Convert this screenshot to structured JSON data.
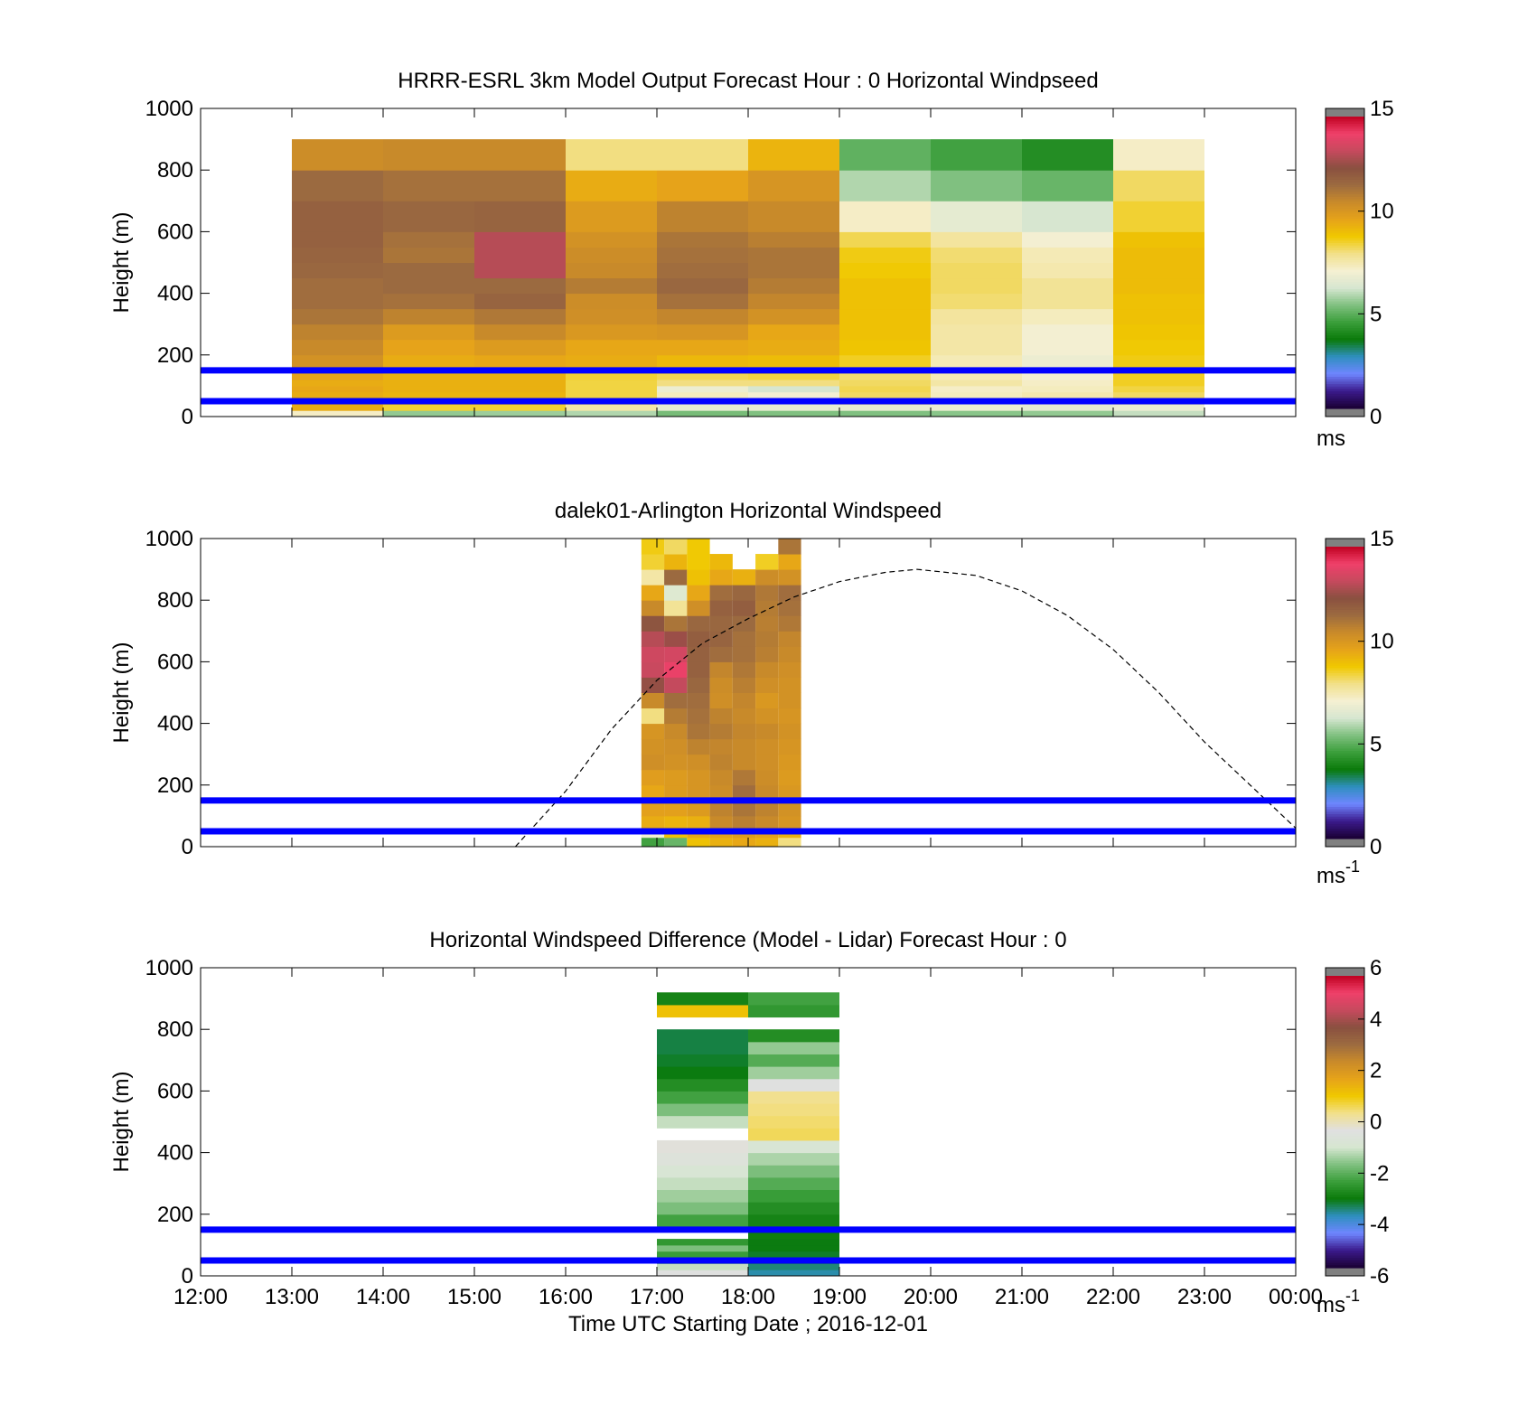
{
  "colors": {
    "line_band": "#0000ff",
    "curve": "#000000",
    "windspeed_scale": [
      "#808080",
      "#1a0033",
      "#3b1a8c",
      "#6f86ff",
      "#2f8fc0",
      "#0a7a0a",
      "#3a9e3a",
      "#7fc07f",
      "#d6e6d0",
      "#f5f0d2",
      "#f2e08a",
      "#f0c800",
      "#e6a31a",
      "#c98a2a",
      "#9c6b40",
      "#8a5040",
      "#c64a5e",
      "#f0406a",
      "#c00020",
      "#808080"
    ],
    "difference_scale": [
      "#808080",
      "#1a0033",
      "#3b1a8c",
      "#6f86ff",
      "#2f8fc0",
      "#0a7a0a",
      "#3a9e3a",
      "#7fc07f",
      "#d6e6d0",
      "#e0e0e0",
      "#f2e08a",
      "#f0c800",
      "#e6a31a",
      "#c98a2a",
      "#9c6b40",
      "#8a5040",
      "#c64a5e",
      "#f0406a",
      "#c00020",
      "#808080"
    ]
  },
  "chart_data": [
    {
      "type": "heatmap",
      "title": "HRRR-ESRL 3km Model Output   Forecast Hour : 0 Horizontal Windpseed",
      "ylabel": "Height (m)",
      "xlabel": "",
      "xlim": [
        12,
        24
      ],
      "ylim": [
        0,
        1000
      ],
      "yticks": [
        "1000",
        "800",
        "600",
        "400",
        "200",
        "0"
      ],
      "colorbar": {
        "ticks": [
          "15",
          "10",
          "5",
          "0"
        ],
        "range": [
          0,
          15
        ],
        "unit": "ms",
        "unit_sup": ""
      },
      "horizontal_lines_m": [
        50,
        150
      ],
      "columns_x": [
        13,
        14,
        15,
        16,
        17,
        18,
        19,
        20,
        21,
        22,
        23
      ],
      "column_width_h": 1,
      "height_bins_m": [
        0,
        20,
        40,
        60,
        80,
        100,
        120,
        140,
        160,
        200,
        250,
        300,
        350,
        400,
        450,
        500,
        550,
        600,
        700,
        800,
        900,
        1000
      ],
      "values": [
        [
          7.2,
          9.5,
          9.5,
          9.5,
          9.6,
          9.5,
          9.7,
          9.8,
          10.3,
          10.6,
          10.8,
          11.2,
          11.4,
          11.4,
          11.6,
          11.7,
          11.8,
          11.8,
          11.5,
          10.5
        ],
        [
          5.5,
          8.5,
          9.0,
          9.3,
          9.4,
          9.4,
          9.4,
          9.4,
          9.5,
          9.7,
          10.0,
          10.8,
          11.3,
          11.5,
          11.5,
          11.2,
          11.3,
          11.6,
          11.3,
          10.6
        ],
        [
          5.6,
          8.5,
          9.0,
          9.3,
          9.4,
          9.4,
          9.4,
          9.4,
          9.6,
          10.0,
          10.6,
          11.1,
          11.7,
          11.5,
          13.0,
          13.0,
          13.0,
          11.7,
          11.3,
          10.6
        ],
        [
          5.8,
          7.6,
          8.2,
          8.4,
          8.4,
          8.4,
          8.5,
          8.6,
          9.5,
          9.6,
          10.1,
          10.4,
          10.5,
          11.0,
          10.6,
          10.5,
          10.3,
          10.0,
          9.5,
          8.0
        ],
        [
          5.2,
          6.6,
          7.2,
          7.3,
          6.8,
          8.0,
          8.3,
          8.6,
          9.2,
          9.6,
          10.2,
          10.7,
          11.3,
          11.6,
          11.4,
          11.3,
          11.2,
          10.8,
          9.7,
          8.0
        ],
        [
          5.3,
          6.7,
          6.4,
          7.0,
          6.2,
          8.0,
          8.4,
          8.8,
          9.1,
          9.5,
          9.6,
          10.3,
          10.7,
          11.0,
          11.2,
          11.2,
          10.9,
          10.6,
          10.2,
          9.3
        ],
        [
          5.3,
          6.7,
          8.0,
          8.2,
          8.3,
          8.2,
          8.1,
          8.2,
          8.6,
          8.9,
          9.0,
          9.0,
          9.0,
          9.0,
          8.8,
          8.7,
          8.3,
          7.2,
          5.8,
          4.9
        ],
        [
          5.4,
          6.8,
          6.5,
          7.3,
          7.2,
          7.6,
          7.4,
          7.6,
          7.4,
          7.6,
          7.6,
          7.7,
          8.1,
          8.2,
          8.2,
          8.1,
          7.7,
          6.6,
          5.3,
          4.5
        ],
        [
          5.5,
          6.6,
          7.0,
          7.5,
          7.3,
          7.2,
          7.0,
          7.0,
          6.8,
          7.0,
          7.0,
          7.3,
          7.8,
          7.8,
          7.5,
          7.4,
          7.0,
          6.2,
          5.0,
          4.0
        ],
        [
          6.0,
          6.8,
          7.6,
          8.2,
          8.4,
          8.6,
          8.6,
          8.7,
          8.7,
          8.8,
          8.9,
          9.0,
          9.0,
          9.1,
          9.1,
          9.1,
          9.0,
          8.5,
          8.2,
          7.2
        ],
        [
          null,
          null,
          null,
          null,
          null,
          null,
          null,
          null,
          null,
          null,
          null,
          null,
          null,
          null,
          null,
          null,
          null,
          null,
          null,
          null
        ],
        [
          null,
          null,
          null,
          null,
          null,
          null,
          null,
          null,
          null,
          null,
          null,
          null,
          null,
          null,
          null,
          null,
          null,
          null,
          null,
          null
        ]
      ]
    },
    {
      "type": "heatmap",
      "title": "dalek01-Arlington  Horizontal Windspeed",
      "ylabel": "Height (m)",
      "xlabel": "",
      "xlim": [
        12,
        24
      ],
      "ylim": [
        0,
        1000
      ],
      "yticks": [
        "1000",
        "800",
        "600",
        "400",
        "200",
        "0"
      ],
      "colorbar": {
        "ticks": [
          "15",
          "10",
          "5",
          "0"
        ],
        "range": [
          0,
          15
        ],
        "unit": "ms",
        "unit_sup": "-1"
      },
      "horizontal_lines_m": [
        50,
        150
      ],
      "columns_x_start": [
        16.83,
        17.08,
        17.33,
        17.58,
        17.83,
        18.08,
        18.33
      ],
      "column_width_h": 0.25,
      "height_bins_m": [
        0,
        30,
        60,
        100,
        150,
        200,
        250,
        300,
        350,
        400,
        450,
        500,
        550,
        600,
        650,
        700,
        750,
        800,
        850,
        900,
        950,
        1000
      ],
      "values": [
        [
          4.5,
          7.0,
          9.5,
          9.8,
          9.6,
          9.9,
          10.4,
          10.3,
          10.2,
          8.0,
          10.6,
          12.5,
          13.3,
          13.4,
          13.0,
          12.2,
          10.6,
          9.6,
          7.6,
          8.5,
          8.7
        ],
        [
          5.0,
          9.0,
          9.3,
          9.8,
          10.0,
          10.0,
          10.3,
          10.4,
          10.6,
          11.0,
          11.4,
          13.2,
          14.0,
          13.5,
          12.6,
          11.2,
          7.8,
          6.4,
          11.5,
          9.3,
          8.2
        ],
        [
          9.0,
          9.6,
          9.4,
          10.0,
          10.2,
          10.2,
          10.4,
          10.8,
          11.2,
          11.3,
          11.4,
          11.6,
          11.8,
          11.8,
          11.9,
          11.6,
          10.4,
          9.6,
          9.0,
          8.8,
          8.8
        ],
        [
          9.4,
          9.8,
          10.6,
          10.8,
          10.5,
          10.6,
          10.8,
          10.7,
          11.0,
          10.8,
          10.4,
          10.5,
          10.7,
          11.4,
          11.7,
          11.6,
          11.8,
          11.4,
          9.6,
          9.2,
          null
        ],
        [
          9.6,
          10.0,
          10.9,
          11.2,
          11.4,
          11.1,
          10.6,
          10.6,
          10.7,
          10.6,
          10.7,
          10.9,
          11.1,
          11.3,
          11.3,
          11.5,
          11.9,
          11.6,
          9.4,
          null,
          null
        ],
        [
          9.4,
          9.8,
          10.6,
          10.8,
          10.6,
          10.5,
          10.4,
          10.4,
          10.6,
          10.3,
          10.1,
          10.4,
          10.6,
          10.9,
          11.0,
          10.9,
          11.0,
          11.1,
          10.5,
          8.6,
          null
        ],
        [
          8.0,
          9.4,
          10.2,
          10.3,
          10.1,
          10.0,
          10.1,
          10.2,
          10.3,
          10.2,
          10.3,
          10.3,
          10.4,
          10.6,
          10.7,
          11.1,
          11.3,
          11.4,
          10.3,
          9.6,
          11.2
        ]
      ],
      "curve": {
        "style": "dashed",
        "points": [
          [
            15.45,
            0
          ],
          [
            16,
            180
          ],
          [
            16.5,
            380
          ],
          [
            17,
            540
          ],
          [
            17.5,
            660
          ],
          [
            18,
            740
          ],
          [
            18.5,
            810
          ],
          [
            19,
            860
          ],
          [
            19.5,
            890
          ],
          [
            19.85,
            900
          ],
          [
            20.5,
            880
          ],
          [
            21,
            830
          ],
          [
            21.5,
            750
          ],
          [
            22,
            640
          ],
          [
            22.5,
            500
          ],
          [
            23,
            340
          ],
          [
            23.5,
            200
          ],
          [
            24,
            60
          ]
        ]
      }
    },
    {
      "type": "heatmap",
      "title": "Horizontal Windspeed Difference (Model - Lidar) Forecast Hour : 0",
      "ylabel": "Height (m)",
      "xlabel": "Time UTC  Starting Date ; 2016-12-01",
      "xlim": [
        12,
        24
      ],
      "ylim": [
        0,
        1000
      ],
      "xticks": [
        "12:00",
        "13:00",
        "14:00",
        "15:00",
        "16:00",
        "17:00",
        "18:00",
        "19:00",
        "20:00",
        "21:00",
        "22:00",
        "23:00",
        "00:00"
      ],
      "yticks": [
        "1000",
        "800",
        "600",
        "400",
        "200",
        "0"
      ],
      "colorbar": {
        "ticks": [
          "6",
          "4",
          "2",
          "0",
          "-2",
          "-4",
          "-6"
        ],
        "range": [
          -6,
          6
        ],
        "unit": "ms",
        "unit_sup": "-1"
      },
      "horizontal_lines_m": [
        50,
        150
      ],
      "columns_x": [
        17,
        18
      ],
      "column_width_h": 1,
      "height_bins_m": [
        0,
        20,
        40,
        60,
        80,
        100,
        120,
        160,
        200,
        240,
        280,
        320,
        360,
        400,
        440,
        480,
        520,
        560,
        600,
        640,
        680,
        720,
        760,
        800,
        840,
        880,
        920
      ],
      "values": [
        [
          -0.4,
          -1.2,
          -2.0,
          -2.5,
          -1.8,
          -2.6,
          null,
          -2.4,
          -1.8,
          -1.5,
          -1.2,
          -0.9,
          -0.6,
          -0.3,
          null,
          -1.2,
          -1.8,
          -2.4,
          -2.8,
          -3.2,
          -3.3,
          -3.4,
          -3.4,
          null,
          1.2,
          -3.0,
          -2.0
        ],
        [
          -3.8,
          -3.6,
          -3.4,
          -3.3,
          -3.2,
          -3.2,
          -3.1,
          -3.0,
          -2.8,
          -2.5,
          -2.2,
          -1.8,
          -1.4,
          -0.9,
          0.6,
          0.5,
          0.4,
          0.3,
          -0.4,
          -1.5,
          -2.2,
          -1.6,
          -2.8,
          null,
          -2.6,
          -2.4,
          null
        ]
      ]
    }
  ]
}
